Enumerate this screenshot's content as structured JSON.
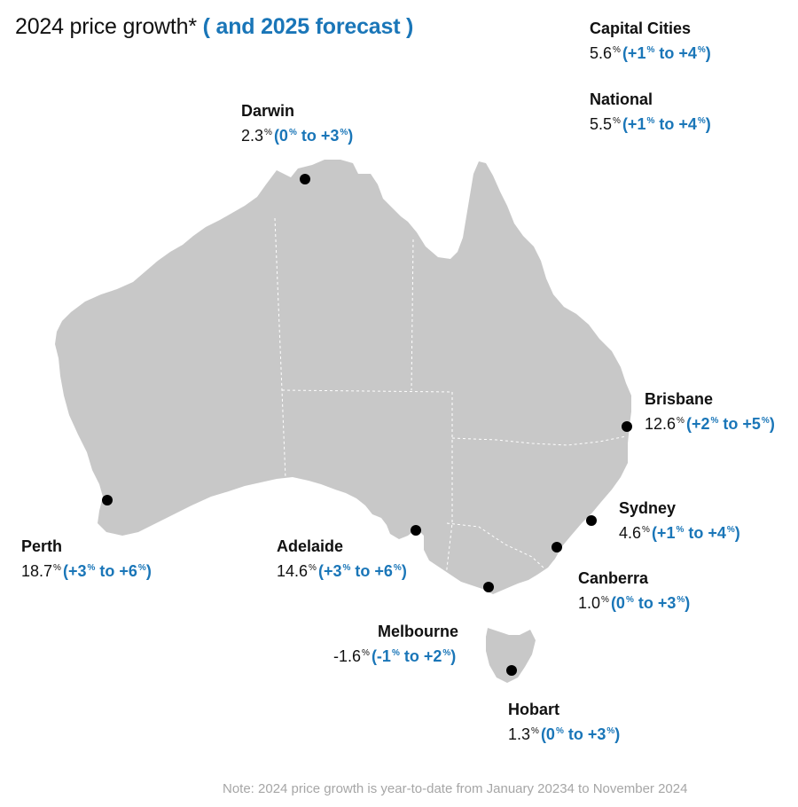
{
  "title": {
    "main": "2024 price growth*",
    "forecast": "( and 2025 forecast )"
  },
  "colors": {
    "land": "#c8c8c8",
    "border": "#ffffff",
    "forecast_text": "#1a76b8",
    "note_text": "#a6a6a6",
    "marker": "#000000"
  },
  "summary": [
    {
      "name": "Capital Cities",
      "growth": "5.6",
      "unit": "%",
      "forecast_open": "(+1",
      "forecast_mid": " to +4",
      "forecast_close": ")"
    },
    {
      "name": "National",
      "growth": "5.5",
      "unit": "%",
      "forecast_open": "(+1",
      "forecast_mid": " to +4",
      "forecast_close": ")"
    }
  ],
  "cities": [
    {
      "id": "darwin",
      "name": "Darwin",
      "growth": "2.3",
      "unit": "%",
      "forecast_open": "(0",
      "forecast_mid": " to +3",
      "forecast_close": ")"
    },
    {
      "id": "brisbane",
      "name": "Brisbane",
      "growth": "12.6",
      "unit": "%",
      "forecast_open": "(+2",
      "forecast_mid": " to +5",
      "forecast_close": ")"
    },
    {
      "id": "sydney",
      "name": "Sydney",
      "growth": "4.6",
      "unit": "%",
      "forecast_open": "(+1",
      "forecast_mid": " to +4",
      "forecast_close": ")"
    },
    {
      "id": "canberra",
      "name": "Canberra",
      "growth": "1.0",
      "unit": "%",
      "forecast_open": "(0",
      "forecast_mid": " to +3",
      "forecast_close": ")"
    },
    {
      "id": "perth",
      "name": "Perth",
      "growth": "18.7",
      "unit": "%",
      "forecast_open": "(+3",
      "forecast_mid": " to +6",
      "forecast_close": ")"
    },
    {
      "id": "adelaide",
      "name": "Adelaide",
      "growth": "14.6",
      "unit": "%",
      "forecast_open": "(+3",
      "forecast_mid": " to +6",
      "forecast_close": ")"
    },
    {
      "id": "melbourne",
      "name": "Melbourne",
      "growth": "-1.6",
      "unit": "%",
      "forecast_open": "(-1",
      "forecast_mid": " to +2",
      "forecast_close": ")"
    },
    {
      "id": "hobart",
      "name": "Hobart",
      "growth": "1.3",
      "unit": "%",
      "forecast_open": "(0",
      "forecast_mid": " to +3",
      "forecast_close": ")"
    }
  ],
  "note": "Note: 2024 price growth is year-to-date from January 20234 to November 2024"
}
